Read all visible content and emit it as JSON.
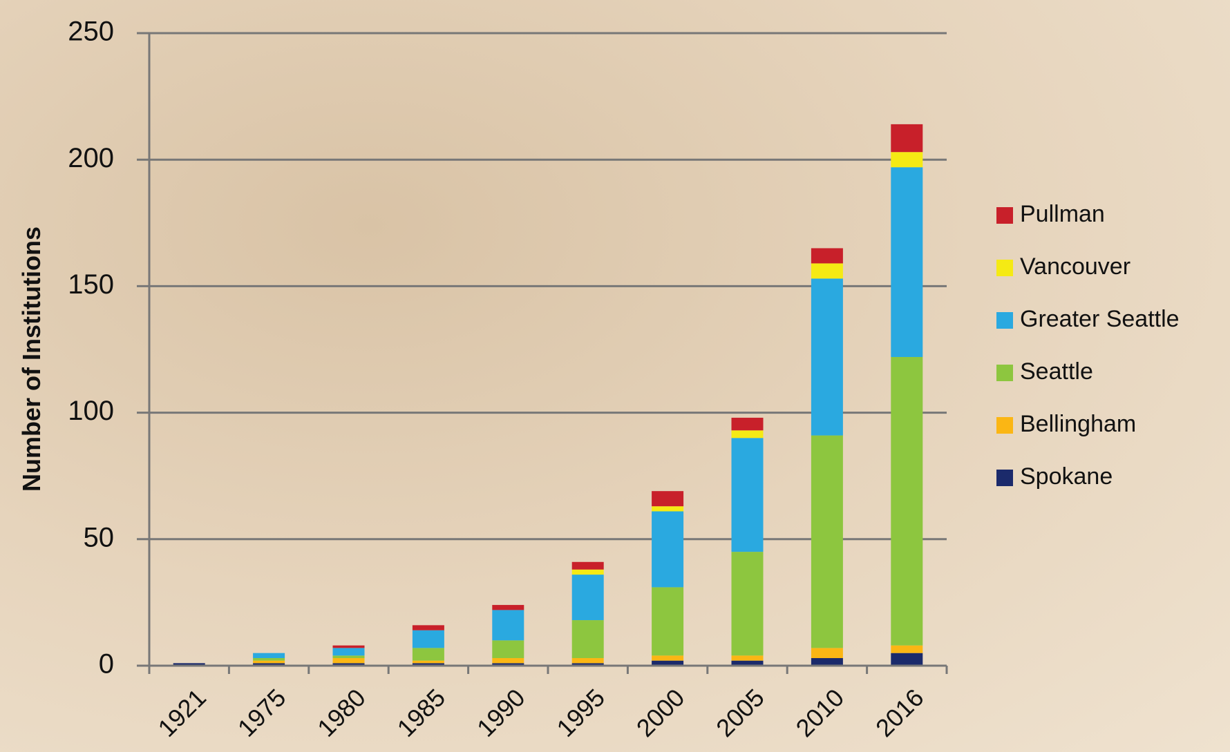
{
  "chart_data": {
    "type": "stacked_bar",
    "y_label": "Number of Institutions",
    "categories": [
      "1921",
      "1975",
      "1980",
      "1985",
      "1990",
      "1995",
      "2000",
      "2005",
      "2010",
      "2016"
    ],
    "series": [
      {
        "name": "Spokane",
        "color": "#1b2a6b",
        "values": [
          1,
          1,
          1,
          1,
          1,
          1,
          2,
          2,
          3,
          5
        ]
      },
      {
        "name": "Bellingham",
        "color": "#fbb614",
        "values": [
          0,
          1,
          2,
          1,
          2,
          2,
          2,
          2,
          4,
          3
        ]
      },
      {
        "name": "Seattle",
        "color": "#8dc63f",
        "values": [
          0,
          1,
          1,
          5,
          7,
          15,
          27,
          41,
          84,
          114
        ]
      },
      {
        "name": "Greater Seattle",
        "color": "#2aa9e0",
        "values": [
          0,
          2,
          3,
          7,
          12,
          18,
          30,
          45,
          62,
          75
        ]
      },
      {
        "name": "Vancouver",
        "color": "#f5ea14",
        "values": [
          0,
          0,
          0,
          0,
          0,
          2,
          2,
          3,
          6,
          6
        ]
      },
      {
        "name": "Pullman",
        "color": "#c8202a",
        "values": [
          0,
          0,
          1,
          2,
          2,
          3,
          6,
          5,
          6,
          11
        ]
      }
    ],
    "ylim": [
      0,
      250
    ],
    "yticks": [
      0,
      50,
      100,
      150,
      200,
      250
    ],
    "grid": true,
    "legend": "right"
  }
}
